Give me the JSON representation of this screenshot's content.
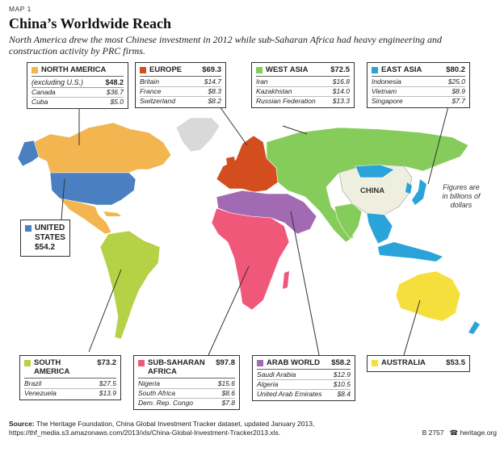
{
  "header": {
    "map_label": "MAP 1",
    "title": "China’s Worldwide Reach",
    "subtitle": "North America drew the most Chinese investment in 2012 while sub-Saharan Africa had heavy engineering and construction activity by PRC firms."
  },
  "note": "Figures are in billions of dollars",
  "china_label": "CHINA",
  "colors": {
    "north_america": "#f2b54f",
    "usa": "#4a7fc1",
    "europe": "#d34d1f",
    "west_asia": "#86cc5a",
    "east_asia": "#2aa3d9",
    "south_america": "#b5d146",
    "africa": "#f0587a",
    "arab": "#a26ab3",
    "australia": "#f4df3c",
    "china": "#efefdf",
    "other": "#d9d9d9"
  },
  "regions": {
    "north_america": {
      "name": "NORTH AMERICA",
      "sub": "(excluding U.S.)",
      "total": "$48.2",
      "rows": [
        {
          "c": "Canada",
          "v": "$36.7"
        },
        {
          "c": "Cuba",
          "v": "$5.0"
        }
      ]
    },
    "europe": {
      "name": "EUROPE",
      "total": "$69.3",
      "rows": [
        {
          "c": "Britain",
          "v": "$14.7"
        },
        {
          "c": "France",
          "v": "$8.3"
        },
        {
          "c": "Switzerland",
          "v": "$8.2"
        }
      ]
    },
    "west_asia": {
      "name": "WEST ASIA",
      "total": "$72.5",
      "rows": [
        {
          "c": "Iran",
          "v": "$16.8"
        },
        {
          "c": "Kazakhstan",
          "v": "$14.0"
        },
        {
          "c": "Russian Federation",
          "v": "$13.3"
        }
      ]
    },
    "east_asia": {
      "name": "EAST ASIA",
      "total": "$80.2",
      "rows": [
        {
          "c": "Indonesia",
          "v": "$25.0"
        },
        {
          "c": "Vietnam",
          "v": "$8.9"
        },
        {
          "c": "Singapore",
          "v": "$7.7"
        }
      ]
    },
    "usa": {
      "name1": "UNITED",
      "name2": "STATES",
      "total": "$54.2"
    },
    "south_america": {
      "name": "SOUTH AMERICA",
      "total": "$73.2",
      "rows": [
        {
          "c": "Brazil",
          "v": "$27.5"
        },
        {
          "c": "Venezuela",
          "v": "$13.9"
        }
      ]
    },
    "africa": {
      "name1": "SUB-SAHARAN",
      "name2": "AFRICA",
      "total": "$97.8",
      "rows": [
        {
          "c": "Nigeria",
          "v": "$15.6"
        },
        {
          "c": "South Africa",
          "v": "$8.6"
        },
        {
          "c": "Dem. Rep. Congo",
          "v": "$7.8"
        }
      ]
    },
    "arab": {
      "name": "ARAB WORLD",
      "total": "$58.2",
      "rows": [
        {
          "c": "Saudi Arabia",
          "v": "$12.9"
        },
        {
          "c": "Algeria",
          "v": "$10.5"
        },
        {
          "c": "United Arab Emirates",
          "v": "$8.4"
        }
      ]
    },
    "australia": {
      "name": "AUSTRALIA",
      "total": "$53.5"
    }
  },
  "footer": {
    "source_label": "Source:",
    "source_text": "The Heritage Foundation, China Global Investment Tracker dataset, updated January 2013,",
    "url": "https://thf_media.s3.amazonaws.com/2013/xls/China-Global-Investment-Tracker2013.xls.",
    "code": "B 2757",
    "site": "heritage.org",
    "bell": "☎"
  }
}
